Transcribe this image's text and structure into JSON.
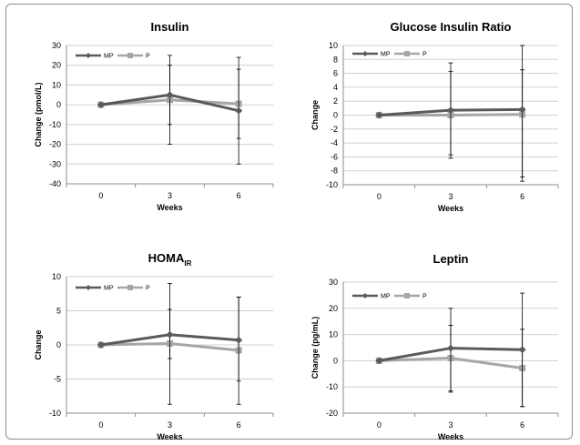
{
  "chart_data": [
    {
      "type": "line",
      "title": "Insulin",
      "title_sub": "",
      "xlabel": "Weeks",
      "ylabel": "Change (pmol/L)",
      "categories": [
        "0",
        "3",
        "6"
      ],
      "ylim": [
        -40,
        30
      ],
      "yticks": [
        30,
        20,
        10,
        0,
        -10,
        -20,
        -30,
        -40
      ],
      "grid": true,
      "legend": "top-left",
      "series": [
        {
          "name": "MP",
          "values": [
            0,
            5,
            -3
          ],
          "err_low": [
            0,
            -10,
            -30
          ],
          "err_high": [
            0,
            25,
            24
          ],
          "color": "#5a5a5a",
          "marker": "diamond"
        },
        {
          "name": "P",
          "values": [
            0,
            2.5,
            0.5
          ],
          "err_low": [
            0,
            -20,
            -17
          ],
          "err_high": [
            0,
            20,
            18
          ],
          "color": "#a6a6a6",
          "marker": "square"
        }
      ]
    },
    {
      "type": "line",
      "title": "Glucose Insulin Ratio",
      "title_sub": "",
      "xlabel": "Weeks",
      "ylabel": "Change",
      "categories": [
        "0",
        "3",
        "6"
      ],
      "ylim": [
        -10,
        10
      ],
      "yticks": [
        10,
        8,
        6,
        4,
        2,
        0,
        -2,
        -4,
        -6,
        -8,
        -10
      ],
      "grid": true,
      "legend": "top-left",
      "series": [
        {
          "name": "MP",
          "values": [
            0,
            0.7,
            0.8
          ],
          "err_low": [
            0,
            -6.2,
            -9.5
          ],
          "err_high": [
            0,
            7.5,
            10
          ],
          "color": "#5a5a5a",
          "marker": "diamond"
        },
        {
          "name": "P",
          "values": [
            0,
            0,
            0.1
          ],
          "err_low": [
            0,
            -5.7,
            -8.9
          ],
          "err_high": [
            0,
            6.3,
            6.5
          ],
          "color": "#a6a6a6",
          "marker": "square"
        }
      ]
    },
    {
      "type": "line",
      "title": "HOMA",
      "title_sub": "IR",
      "xlabel": "Weeks",
      "ylabel": "Change",
      "categories": [
        "0",
        "3",
        "6"
      ],
      "ylim": [
        -10,
        10
      ],
      "yticks": [
        10,
        5,
        0,
        -5,
        -10
      ],
      "grid": true,
      "legend": "top-left",
      "series": [
        {
          "name": "MP",
          "values": [
            0,
            1.5,
            0.7
          ],
          "err_low": [
            0,
            -8.7,
            -8.7
          ],
          "err_high": [
            0,
            9,
            7
          ],
          "color": "#5a5a5a",
          "marker": "diamond"
        },
        {
          "name": "P",
          "values": [
            0,
            0.2,
            -0.8
          ],
          "err_low": [
            0,
            -2,
            -5.3
          ],
          "err_high": [
            0,
            5.2,
            7
          ],
          "color": "#a6a6a6",
          "marker": "square"
        }
      ]
    },
    {
      "type": "line",
      "title": "Leptin",
      "title_sub": "",
      "xlabel": "Weeks",
      "ylabel": "Change (pg/mL)",
      "categories": [
        "0",
        "3",
        "6"
      ],
      "ylim": [
        -20,
        30
      ],
      "yticks": [
        30,
        20,
        10,
        0,
        -10,
        -20
      ],
      "grid": true,
      "legend": "top-left",
      "series": [
        {
          "name": "MP",
          "values": [
            0,
            4.8,
            4.2
          ],
          "err_low": [
            0,
            -11.5,
            -17.5
          ],
          "err_high": [
            0,
            20,
            25.8
          ],
          "color": "#5a5a5a",
          "marker": "diamond"
        },
        {
          "name": "P",
          "values": [
            0,
            1,
            -2.8
          ],
          "err_low": [
            0,
            -12,
            -17.5
          ],
          "err_high": [
            0,
            13.5,
            12
          ],
          "color": "#a6a6a6",
          "marker": "square"
        }
      ]
    }
  ]
}
